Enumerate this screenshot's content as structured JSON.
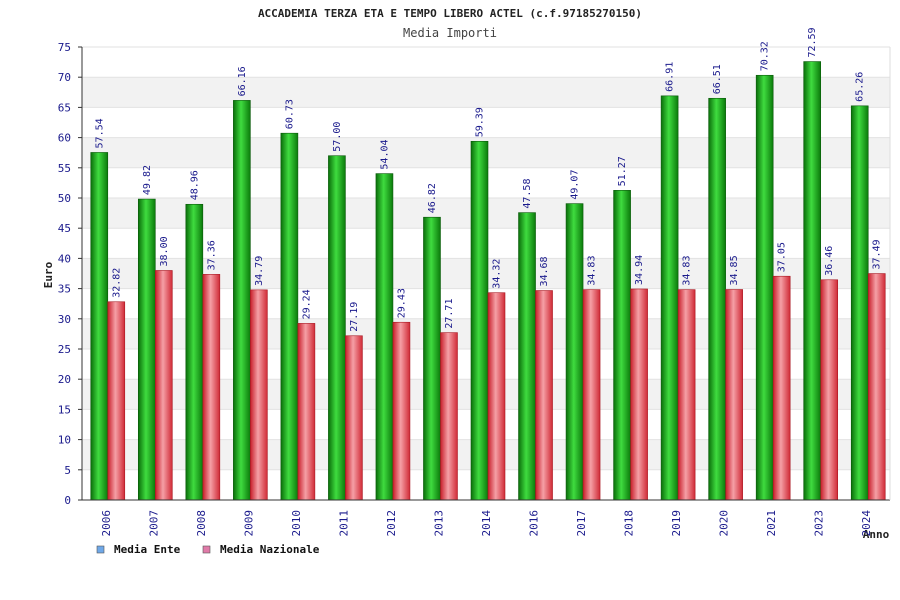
{
  "chart_data": {
    "type": "bar",
    "title": "ACCADEMIA TERZA ETA E TEMPO LIBERO ACTEL (c.f.97185270150)",
    "subtitle": "Media Importi",
    "xlabel": "Anno",
    "ylabel": "Euro",
    "ylim": [
      0,
      75
    ],
    "ytick_step": 5,
    "grid": "horizontal-bands",
    "legend_position": "bottom-left",
    "categories": [
      "2006",
      "2007",
      "2008",
      "2009",
      "2010",
      "2011",
      "2012",
      "2013",
      "2014",
      "2016",
      "2017",
      "2018",
      "2019",
      "2020",
      "2021",
      "2023",
      "2024"
    ],
    "series": [
      {
        "name": "Media Ente",
        "color": "#1aa81a",
        "legend_color": "#6fa8e8",
        "values": [
          57.54,
          49.82,
          48.96,
          66.16,
          60.73,
          57.0,
          54.04,
          46.82,
          59.39,
          47.58,
          49.07,
          51.27,
          66.91,
          66.51,
          70.32,
          72.59,
          65.26
        ],
        "labels": [
          "57.54",
          "49.82",
          "48.96",
          "66.16",
          "60.73",
          "57.00",
          "54.04",
          "46.82",
          "59.39",
          "47.58",
          "49.07",
          "51.27",
          "66.91",
          "66.51",
          "70.32",
          "72.59",
          "65.26"
        ]
      },
      {
        "name": "Media Nazionale",
        "color": "#e8404a",
        "legend_color": "#e07aa8",
        "values": [
          32.82,
          38.0,
          37.36,
          34.79,
          29.24,
          27.19,
          29.43,
          27.71,
          34.32,
          34.68,
          34.83,
          34.94,
          34.83,
          34.85,
          37.05,
          36.46,
          37.49
        ],
        "labels": [
          "32.82",
          "38.00",
          "37.36",
          "34.79",
          "29.24",
          "27.19",
          "29.43",
          "27.71",
          "34.32",
          "34.68",
          "34.83",
          "34.94",
          "34.83",
          "34.85",
          "37.05",
          "36.46",
          "37.49"
        ]
      }
    ]
  }
}
